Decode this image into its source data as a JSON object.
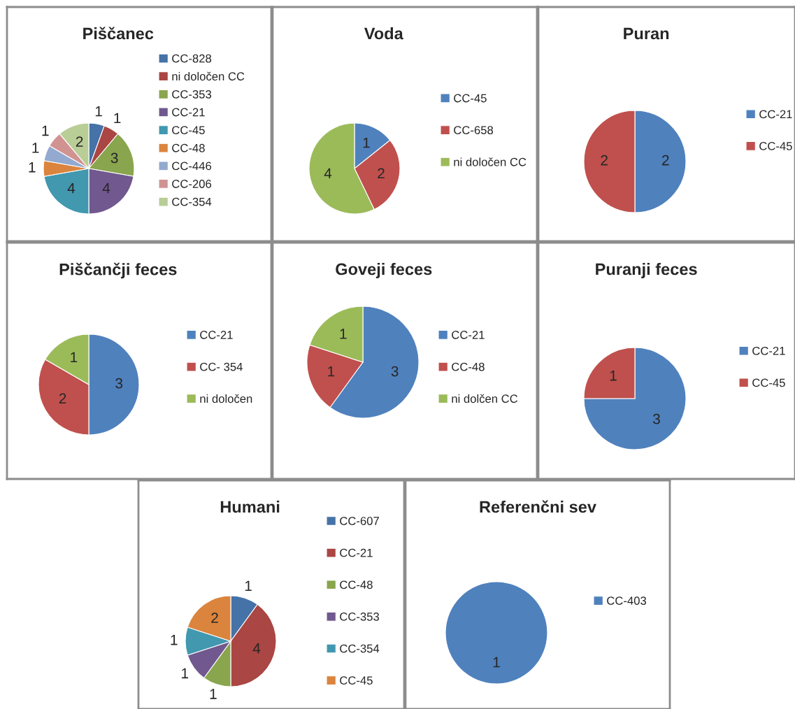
{
  "chart_data": [
    {
      "type": "pie",
      "title": "Piščanec",
      "categories": [
        "CC-828",
        "ni določen CC",
        "CC-353",
        "CC-21",
        "CC-45",
        "CC-48",
        "CC-446",
        "CC-206",
        "CC-354"
      ],
      "values": [
        1,
        1,
        3,
        4,
        4,
        1,
        1,
        1,
        2
      ],
      "colors": [
        "#4572a7",
        "#aa4643",
        "#89a54e",
        "#71588f",
        "#4198af",
        "#db843d",
        "#93a9cf",
        "#d19392",
        "#b9cd96"
      ],
      "data_labels": true,
      "legend": "right"
    },
    {
      "type": "pie",
      "title": "Voda",
      "categories": [
        "CC-45",
        "CC-658",
        "ni določen CC"
      ],
      "values": [
        1,
        2,
        4
      ],
      "colors": [
        "#4f81bd",
        "#c0504d",
        "#9bbb59"
      ],
      "data_labels": true,
      "legend": "right"
    },
    {
      "type": "pie",
      "title": "Puran",
      "categories": [
        "CC-21",
        "CC-45"
      ],
      "values": [
        2,
        2
      ],
      "colors": [
        "#4f81bd",
        "#c0504d"
      ],
      "data_labels": true,
      "legend": "right"
    },
    {
      "type": "pie",
      "title": "Piščančji feces",
      "categories": [
        "CC-21",
        "CC- 354",
        "ni določen"
      ],
      "values": [
        3,
        2,
        1
      ],
      "colors": [
        "#4f81bd",
        "#c0504d",
        "#9bbb59"
      ],
      "data_labels": true,
      "legend": "right"
    },
    {
      "type": "pie",
      "title": "Goveji feces",
      "categories": [
        "CC-21",
        "CC-48",
        "ni dolčen CC"
      ],
      "values": [
        3,
        1,
        1
      ],
      "colors": [
        "#4f81bd",
        "#c0504d",
        "#9bbb59"
      ],
      "data_labels": true,
      "legend": "right"
    },
    {
      "type": "pie",
      "title": "Puranji feces",
      "categories": [
        "CC-21",
        "CC-45"
      ],
      "values": [
        3,
        1
      ],
      "colors": [
        "#4f81bd",
        "#c0504d"
      ],
      "data_labels": true,
      "legend": "right"
    },
    {
      "type": "pie",
      "title": "Humani",
      "categories": [
        "CC-607",
        "CC-21",
        "CC-48",
        "CC-353",
        "CC-354",
        "CC-45"
      ],
      "values": [
        1,
        4,
        1,
        1,
        1,
        2
      ],
      "colors": [
        "#4572a7",
        "#aa4643",
        "#89a54e",
        "#71588f",
        "#4198af",
        "#db843d"
      ],
      "data_labels": true,
      "legend": "right"
    },
    {
      "type": "pie",
      "title": "Referenčni sev",
      "categories": [
        "CC-403"
      ],
      "values": [
        1
      ],
      "colors": [
        "#4f81bd"
      ],
      "data_labels": true,
      "legend": "right"
    }
  ]
}
